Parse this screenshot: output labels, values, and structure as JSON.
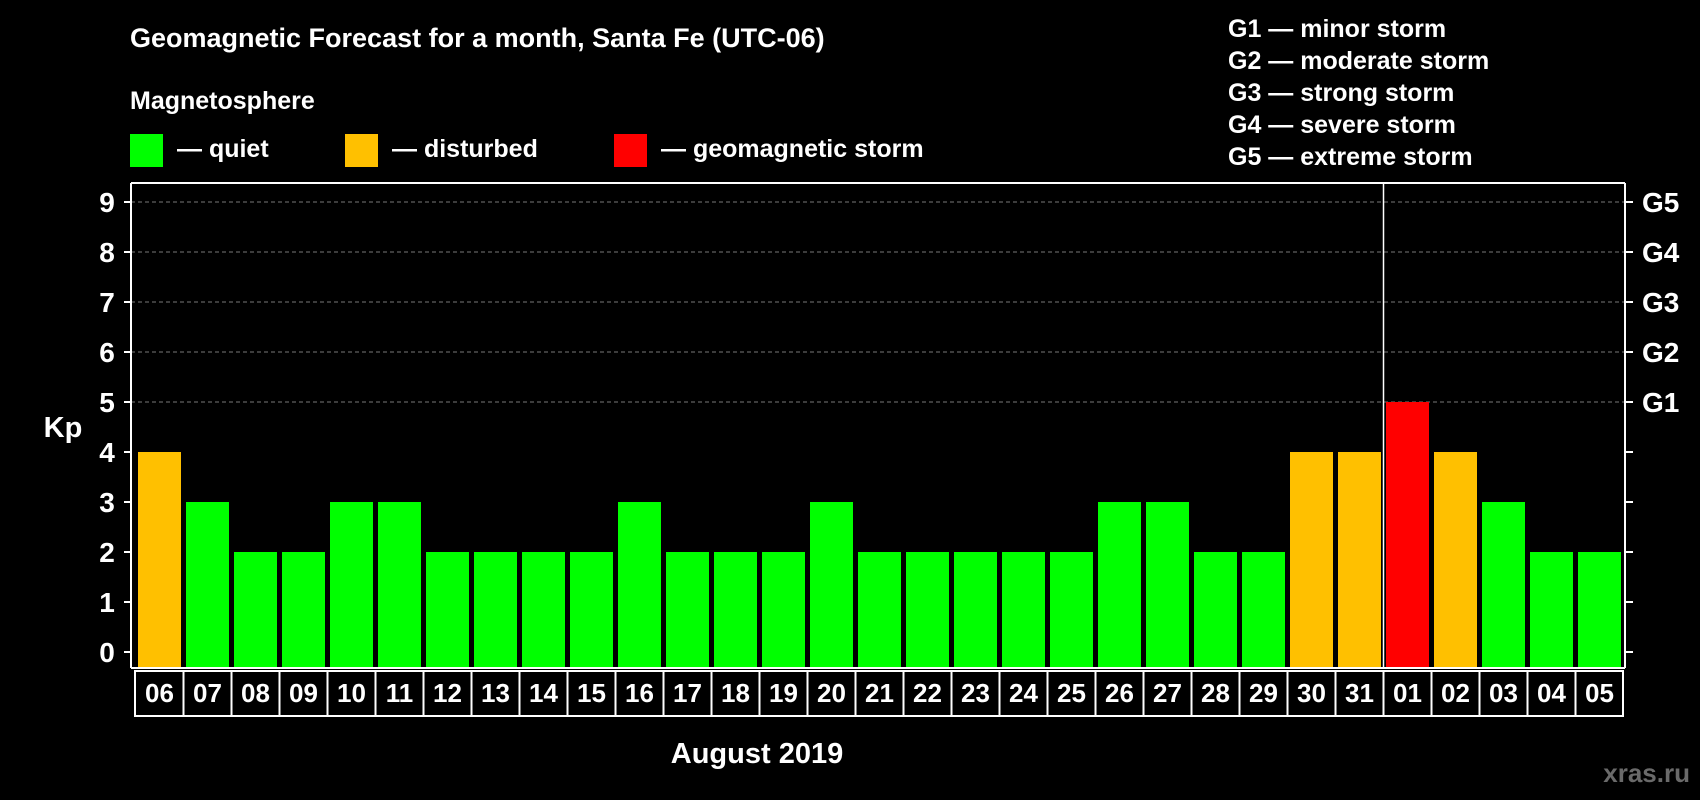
{
  "chart_data": {
    "type": "bar",
    "title": "Geomagnetic Forecast for a month, Santa Fe (UTC-06)",
    "xlabel": "August 2019",
    "ylabel": "Kp",
    "ylim": [
      0,
      9
    ],
    "yticks": [
      "0",
      "1",
      "2",
      "3",
      "4",
      "5",
      "6",
      "7",
      "8",
      "9"
    ],
    "grid": true,
    "categories": [
      "06",
      "07",
      "08",
      "09",
      "10",
      "11",
      "12",
      "13",
      "14",
      "15",
      "16",
      "17",
      "18",
      "19",
      "20",
      "21",
      "22",
      "23",
      "24",
      "25",
      "26",
      "27",
      "28",
      "29",
      "30",
      "31",
      "01",
      "02",
      "03",
      "04",
      "05"
    ],
    "values": [
      4,
      3,
      2,
      2,
      3,
      3,
      2,
      2,
      2,
      2,
      3,
      2,
      2,
      2,
      3,
      2,
      2,
      2,
      2,
      2,
      3,
      3,
      2,
      2,
      4,
      4,
      5,
      4,
      3,
      2,
      2
    ],
    "month_boundary_after": "31",
    "right_axis": [
      {
        "kp": 5,
        "label": "G1"
      },
      {
        "kp": 6,
        "label": "G2"
      },
      {
        "kp": 7,
        "label": "G3"
      },
      {
        "kp": 8,
        "label": "G4"
      },
      {
        "kp": 9,
        "label": "G5"
      }
    ],
    "legend_title": "Magnetosphere",
    "legend": [
      {
        "label": "— quiet",
        "color": "#00ff00"
      },
      {
        "label": "— disturbed",
        "color": "#ffc000"
      },
      {
        "label": "— geomagnetic storm",
        "color": "#ff0000"
      }
    ],
    "storm_scale": [
      "G1 — minor storm",
      "G2 — moderate storm",
      "G3 — strong storm",
      "G4 — severe storm",
      "G5 — extreme storm"
    ],
    "colors": {
      "quiet": "#00ff00",
      "disturbed": "#ffc000",
      "storm": "#ff0000",
      "background": "#000000"
    },
    "watermark": "xras.ru"
  }
}
